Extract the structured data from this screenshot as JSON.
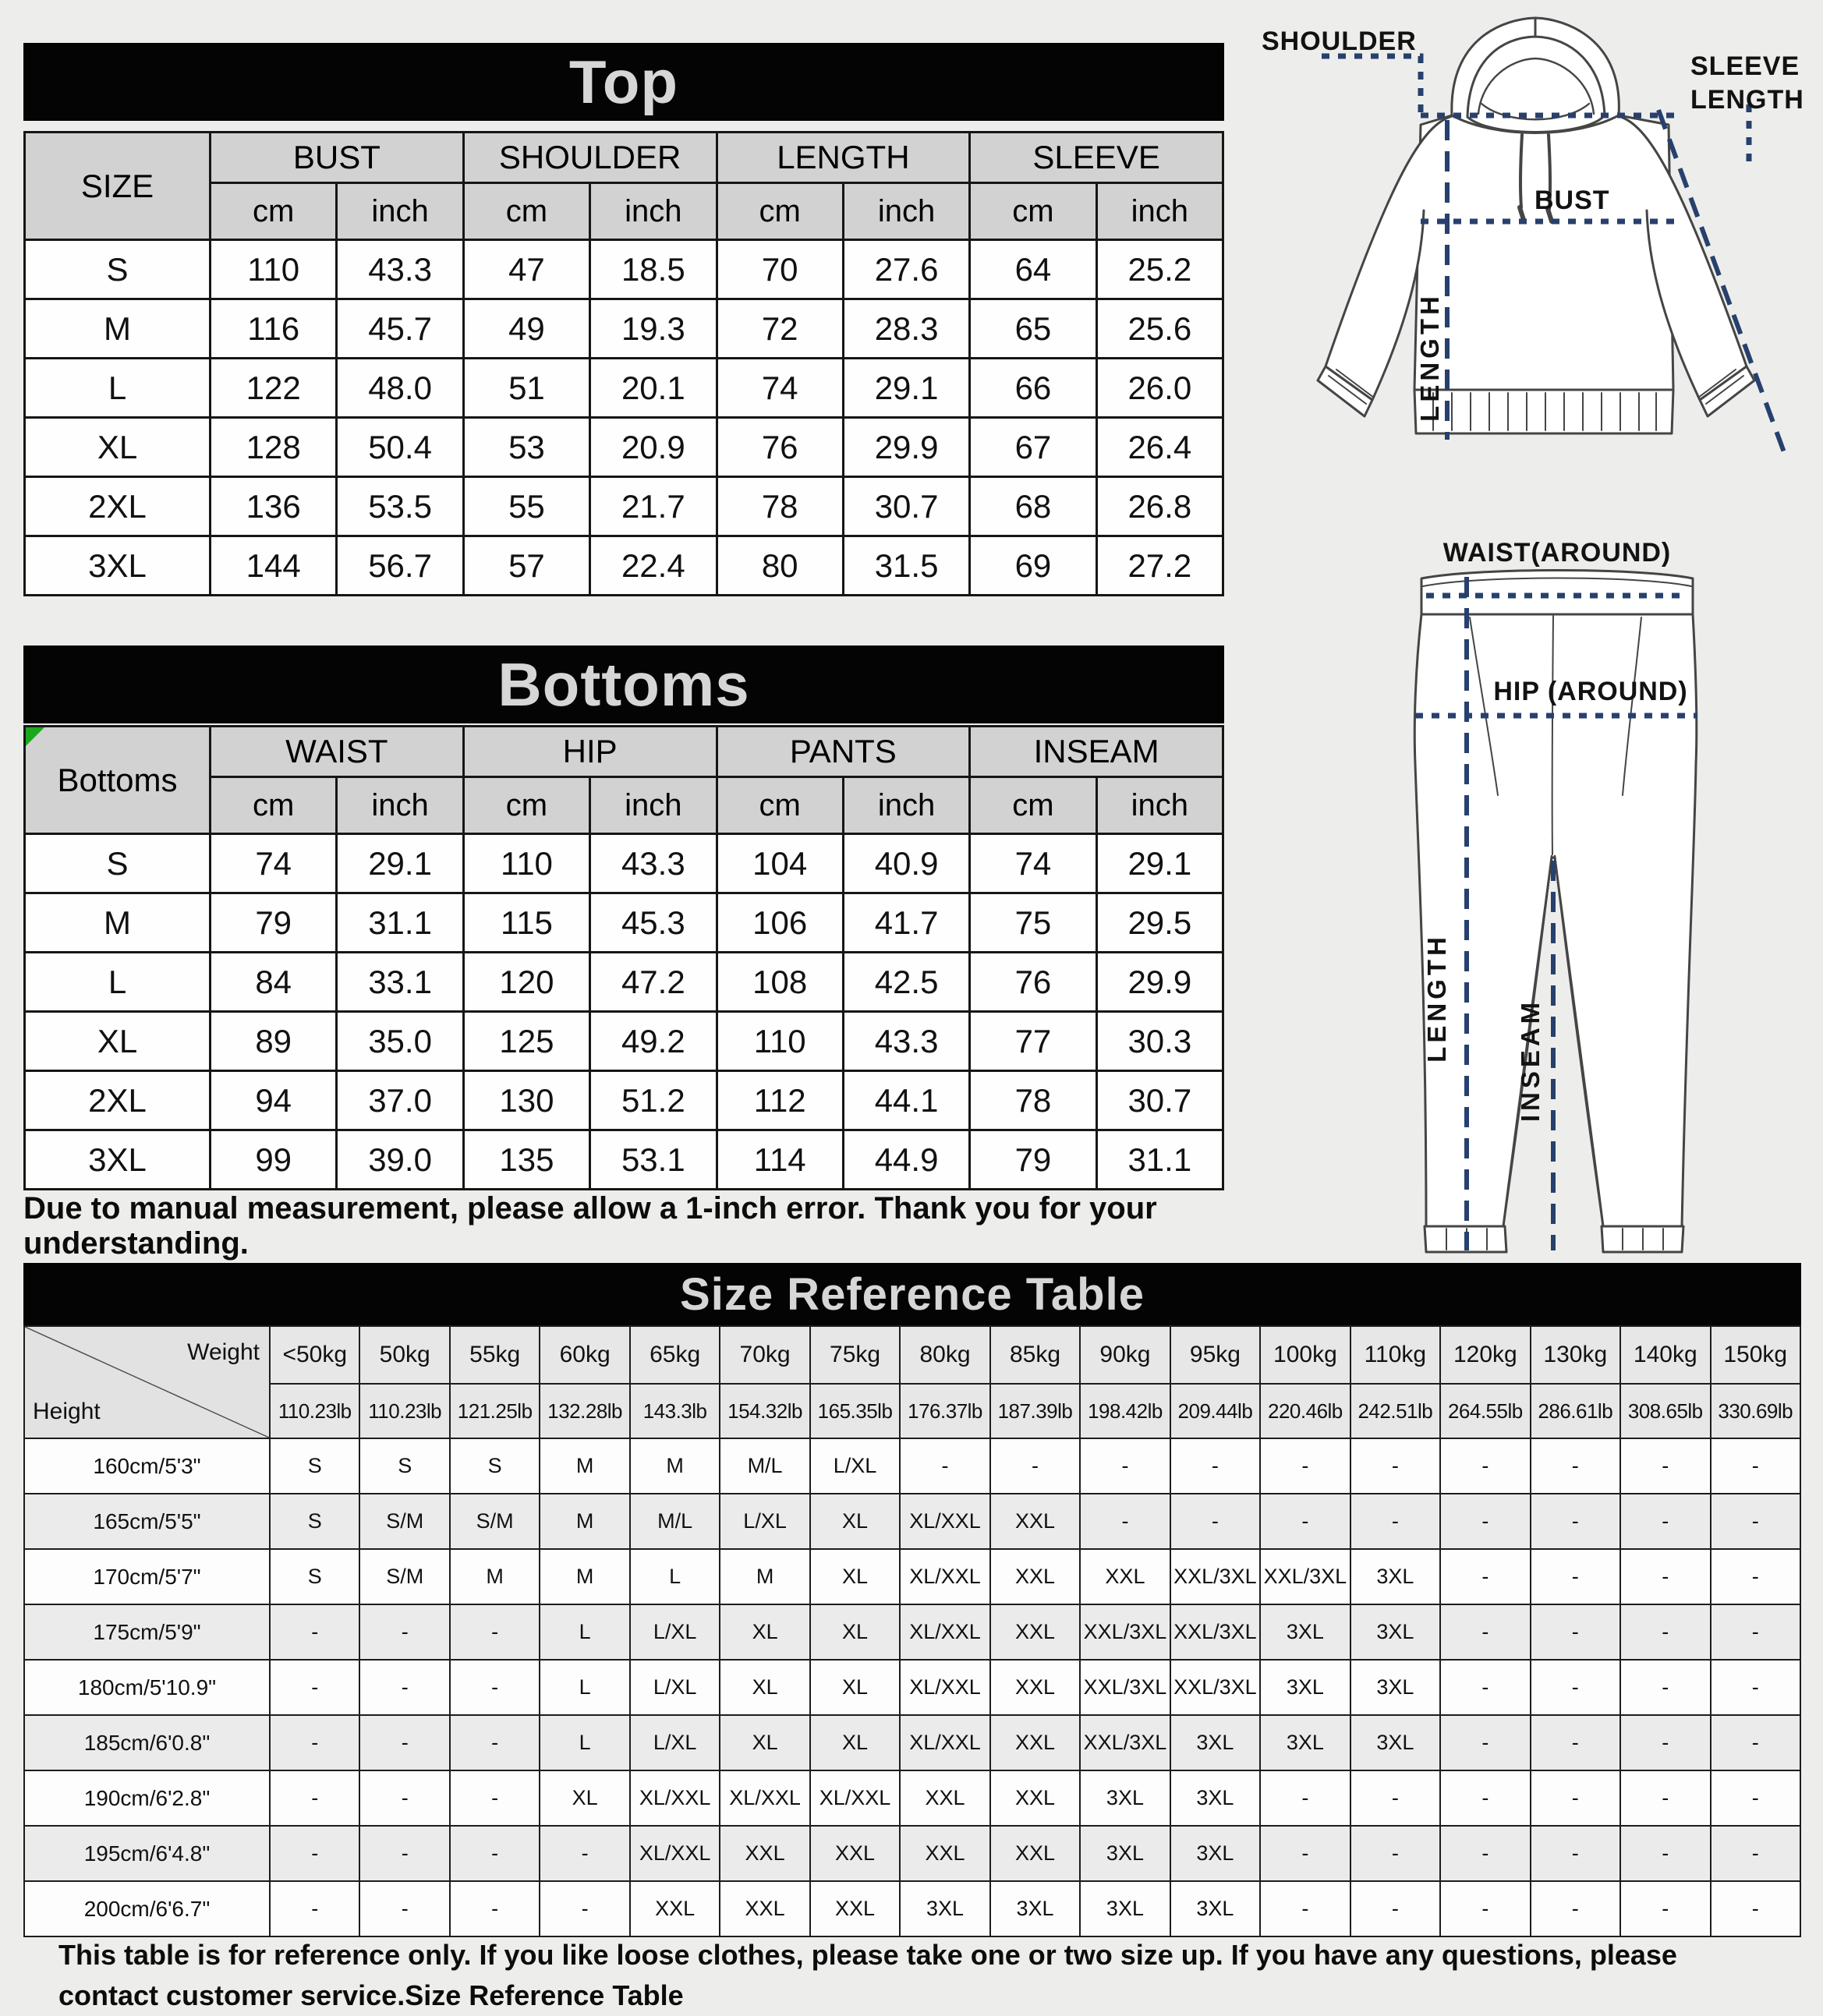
{
  "colors": {
    "banner_bg": "#040404",
    "banner_text": "#d6d6d6",
    "dash_line": "#27406d",
    "marker_green": "#1ca81c",
    "header_gray": "#d2d2d2"
  },
  "units": {
    "cm": "cm",
    "inch": "inch"
  },
  "top_table": {
    "title": "Top",
    "corner_label": "SIZE",
    "groups": [
      "BUST",
      "SHOULDER",
      "LENGTH",
      "SLEEVE"
    ],
    "rows": [
      [
        "S",
        "110",
        "43.3",
        "47",
        "18.5",
        "70",
        "27.6",
        "64",
        "25.2"
      ],
      [
        "M",
        "116",
        "45.7",
        "49",
        "19.3",
        "72",
        "28.3",
        "65",
        "25.6"
      ],
      [
        "L",
        "122",
        "48.0",
        "51",
        "20.1",
        "74",
        "29.1",
        "66",
        "26.0"
      ],
      [
        "XL",
        "128",
        "50.4",
        "53",
        "20.9",
        "76",
        "29.9",
        "67",
        "26.4"
      ],
      [
        "2XL",
        "136",
        "53.5",
        "55",
        "21.7",
        "78",
        "30.7",
        "68",
        "26.8"
      ],
      [
        "3XL",
        "144",
        "56.7",
        "57",
        "22.4",
        "80",
        "31.5",
        "69",
        "27.2"
      ]
    ]
  },
  "bottoms_table": {
    "title": "Bottoms",
    "corner_label": "Bottoms",
    "groups": [
      "WAIST",
      "HIP",
      "PANTS",
      "INSEAM"
    ],
    "rows": [
      [
        "S",
        "74",
        "29.1",
        "110",
        "43.3",
        "104",
        "40.9",
        "74",
        "29.1"
      ],
      [
        "M",
        "79",
        "31.1",
        "115",
        "45.3",
        "106",
        "41.7",
        "75",
        "29.5"
      ],
      [
        "L",
        "84",
        "33.1",
        "120",
        "47.2",
        "108",
        "42.5",
        "76",
        "29.9"
      ],
      [
        "XL",
        "89",
        "35.0",
        "125",
        "49.2",
        "110",
        "43.3",
        "77",
        "30.3"
      ],
      [
        "2XL",
        "94",
        "37.0",
        "130",
        "51.2",
        "112",
        "44.1",
        "78",
        "30.7"
      ],
      [
        "3XL",
        "99",
        "39.0",
        "135",
        "53.1",
        "114",
        "44.9",
        "79",
        "31.1"
      ]
    ]
  },
  "notes": {
    "measurement": "Due to manual measurement, please allow a 1-inch error. Thank you for your understanding.",
    "reference": "This table is for reference only. If you like loose clothes, please take one or two size up. If you have any questions, please contact customer service.Size Reference Table"
  },
  "size_reference": {
    "title": "Size Reference Table",
    "weight_label": "Weight",
    "height_label": "Height",
    "weights_kg": [
      "<50kg",
      "50kg",
      "55kg",
      "60kg",
      "65kg",
      "70kg",
      "75kg",
      "80kg",
      "85kg",
      "90kg",
      "95kg",
      "100kg",
      "110kg",
      "120kg",
      "130kg",
      "140kg",
      "150kg"
    ],
    "weights_lb": [
      "110.23lb",
      "110.23lb",
      "121.25lb",
      "132.28lb",
      "143.3lb",
      "154.32lb",
      "165.35lb",
      "176.37lb",
      "187.39lb",
      "198.42lb",
      "209.44lb",
      "220.46lb",
      "242.51lb",
      "264.55lb",
      "286.61lb",
      "308.65lb",
      "330.69lb"
    ],
    "rows": [
      {
        "height": "160cm/5'3\"",
        "sizes": [
          "S",
          "S",
          "S",
          "M",
          "M",
          "M/L",
          "L/XL",
          "-",
          "-",
          "-",
          "-",
          "-",
          "-",
          "-",
          "-",
          "-",
          "-"
        ]
      },
      {
        "height": "165cm/5'5\"",
        "sizes": [
          "S",
          "S/M",
          "S/M",
          "M",
          "M/L",
          "L/XL",
          "XL",
          "XL/XXL",
          "XXL",
          "-",
          "-",
          "-",
          "-",
          "-",
          "-",
          "-",
          "-"
        ]
      },
      {
        "height": "170cm/5'7\"",
        "sizes": [
          "S",
          "S/M",
          "M",
          "M",
          "L",
          "M",
          "XL",
          "XL/XXL",
          "XXL",
          "XXL",
          "XXL/3XL",
          "XXL/3XL",
          "3XL",
          "-",
          "-",
          "-",
          "-"
        ]
      },
      {
        "height": "175cm/5'9\"",
        "sizes": [
          "-",
          "-",
          "-",
          "L",
          "L/XL",
          "XL",
          "XL",
          "XL/XXL",
          "XXL",
          "XXL/3XL",
          "XXL/3XL",
          "3XL",
          "3XL",
          "-",
          "-",
          "-",
          "-"
        ]
      },
      {
        "height": "180cm/5'10.9\"",
        "sizes": [
          "-",
          "-",
          "-",
          "L",
          "L/XL",
          "XL",
          "XL",
          "XL/XXL",
          "XXL",
          "XXL/3XL",
          "XXL/3XL",
          "3XL",
          "3XL",
          "-",
          "-",
          "-",
          "-"
        ]
      },
      {
        "height": "185cm/6'0.8\"",
        "sizes": [
          "-",
          "-",
          "-",
          "L",
          "L/XL",
          "XL",
          "XL",
          "XL/XXL",
          "XXL",
          "XXL/3XL",
          "3XL",
          "3XL",
          "3XL",
          "-",
          "-",
          "-",
          "-"
        ]
      },
      {
        "height": "190cm/6'2.8\"",
        "sizes": [
          "-",
          "-",
          "-",
          "XL",
          "XL/XXL",
          "XL/XXL",
          "XL/XXL",
          "XXL",
          "XXL",
          "3XL",
          "3XL",
          "-",
          "-",
          "-",
          "-",
          "-",
          "-"
        ]
      },
      {
        "height": "195cm/6'4.8\"",
        "sizes": [
          "-",
          "-",
          "-",
          "-",
          "XL/XXL",
          "XXL",
          "XXL",
          "XXL",
          "XXL",
          "3XL",
          "3XL",
          "-",
          "-",
          "-",
          "-",
          "-",
          "-"
        ]
      },
      {
        "height": "200cm/6'6.7\"",
        "sizes": [
          "-",
          "-",
          "-",
          "-",
          "XXL",
          "XXL",
          "XXL",
          "3XL",
          "3XL",
          "3XL",
          "3XL",
          "-",
          "-",
          "-",
          "-",
          "-",
          "-"
        ]
      }
    ]
  },
  "diagrams": {
    "hoodie": {
      "labels": {
        "shoulder": "SHOULDER",
        "sleeve_length": "SLEEVE LENGTH",
        "bust": "BUST",
        "length": "LENGTH"
      }
    },
    "pants": {
      "labels": {
        "waist": "WAIST(AROUND)",
        "hip": "HIP (AROUND)",
        "length": "LENGTH",
        "inseam": "INSEAM"
      }
    }
  }
}
